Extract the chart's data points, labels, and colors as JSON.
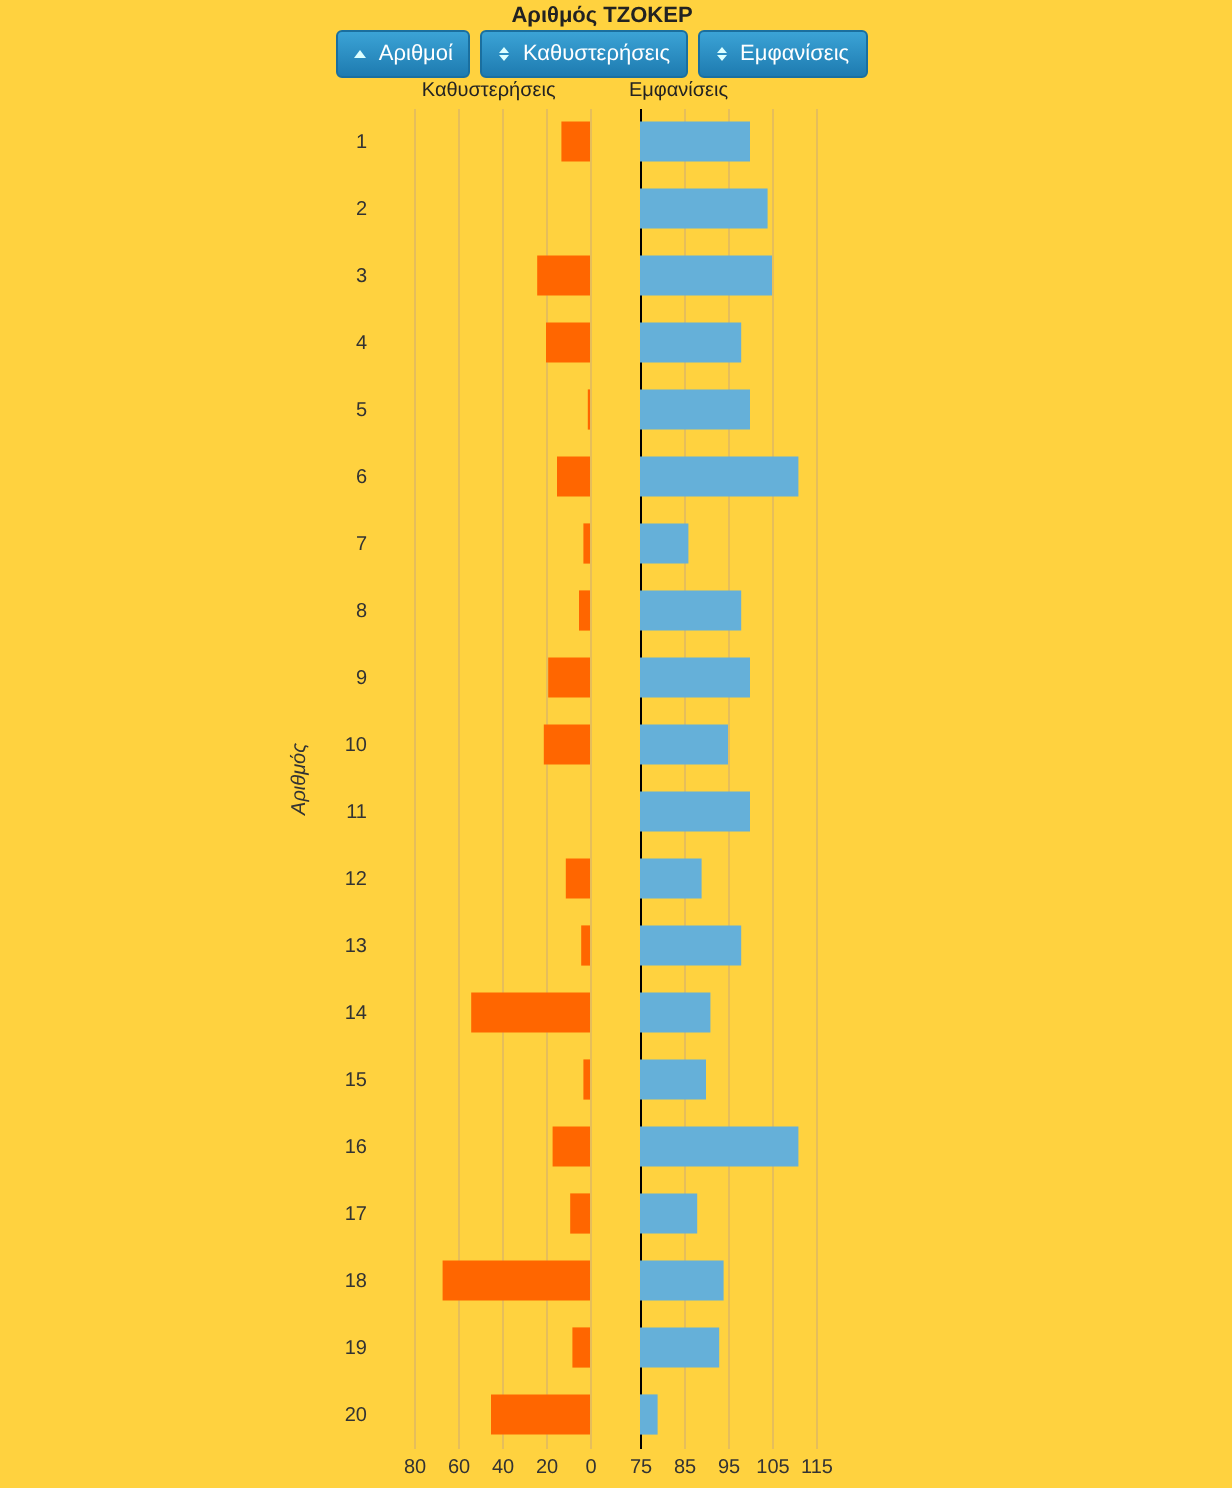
{
  "chart_data": [
    {
      "type": "bar",
      "orientation": "horizontal",
      "title": "Αριθμός ΤΖΟΚΕΡ",
      "xlabel": "Καθυστερήσεις",
      "ylabel": "Αριθμός",
      "annotations": [
        "Αριθμοί",
        "Καθυστερήσεις",
        "Εμφανίσεις"
      ],
      "categories": [
        "1",
        "2",
        "3",
        "4",
        "5",
        "6",
        "7",
        "8",
        "9",
        "10",
        "11",
        "12",
        "13",
        "14",
        "15",
        "16",
        "17",
        "18",
        "19",
        "20"
      ],
      "series": [
        {
          "color": "#ff6600",
          "values": [
            13,
            0,
            24,
            20,
            1,
            15,
            3,
            5,
            19,
            21,
            0,
            11,
            4,
            54,
            3,
            17,
            9,
            67,
            8,
            45
          ]
        }
      ],
      "xlim": [
        80,
        0
      ],
      "xticks": [
        80,
        60,
        40,
        20,
        0
      ],
      "grid": "x"
    },
    {
      "type": "bar",
      "orientation": "horizontal",
      "xlabel": "Εμφανίσεις",
      "tick_labels": "x",
      "categories": [
        "1",
        "2",
        "3",
        "4",
        "5",
        "6",
        "7",
        "8",
        "9",
        "10",
        "11",
        "12",
        "13",
        "14",
        "15",
        "16",
        "17",
        "18",
        "19",
        "20"
      ],
      "series": [
        {
          "color": "#65b0d9",
          "values": [
            100,
            104,
            105,
            98,
            100,
            111,
            86,
            98,
            100,
            95,
            100,
            89,
            98,
            91,
            90,
            111,
            88,
            94,
            93,
            79
          ]
        }
      ],
      "xlim": [
        75,
        115
      ],
      "xticks": [
        75,
        85,
        95,
        105,
        115
      ],
      "grid": "x"
    }
  ]
}
